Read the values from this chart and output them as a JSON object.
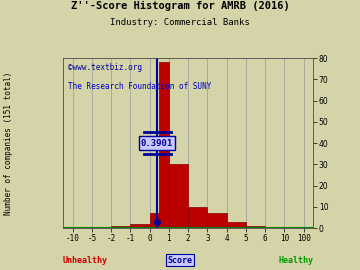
{
  "title": "Z''-Score Histogram for AMRB (2016)",
  "subtitle": "Industry: Commercial Banks",
  "watermark1": "©www.textbiz.org",
  "watermark2": "The Research Foundation of SUNY",
  "xlabel_left": "Unhealthy",
  "xlabel_right": "Healthy",
  "xlabel_center": "Score",
  "ylabel": "Number of companies (151 total)",
  "amrb_score": 0.3901,
  "background_color": "#d4d4a8",
  "bar_color": "#bb0000",
  "bar_edge_color": "#880000",
  "grid_color": "#999999",
  "title_color": "#000000",
  "subtitle_color": "#000000",
  "watermark1_color": "#000099",
  "watermark2_color": "#0000cc",
  "unhealthy_color": "#cc0000",
  "healthy_color": "#009900",
  "score_color": "#000099",
  "marker_color": "#000099",
  "annotation_color": "#000099",
  "annotation_bg": "#c8c8ff",
  "ylim": [
    0,
    80
  ],
  "yticks_right": [
    0,
    10,
    20,
    30,
    40,
    50,
    60,
    70,
    80
  ],
  "x_ticks_real": [
    -10,
    -5,
    -2,
    -1,
    0,
    1,
    2,
    3,
    4,
    5,
    6,
    10,
    100
  ],
  "bar_data": [
    [
      -2,
      -1,
      1
    ],
    [
      -1,
      0,
      2
    ],
    [
      0,
      0.5,
      7
    ],
    [
      0.5,
      1,
      78
    ],
    [
      1,
      2,
      30
    ],
    [
      2,
      3,
      10
    ],
    [
      3,
      4,
      7
    ],
    [
      4,
      5,
      3
    ],
    [
      5,
      6,
      1
    ]
  ]
}
